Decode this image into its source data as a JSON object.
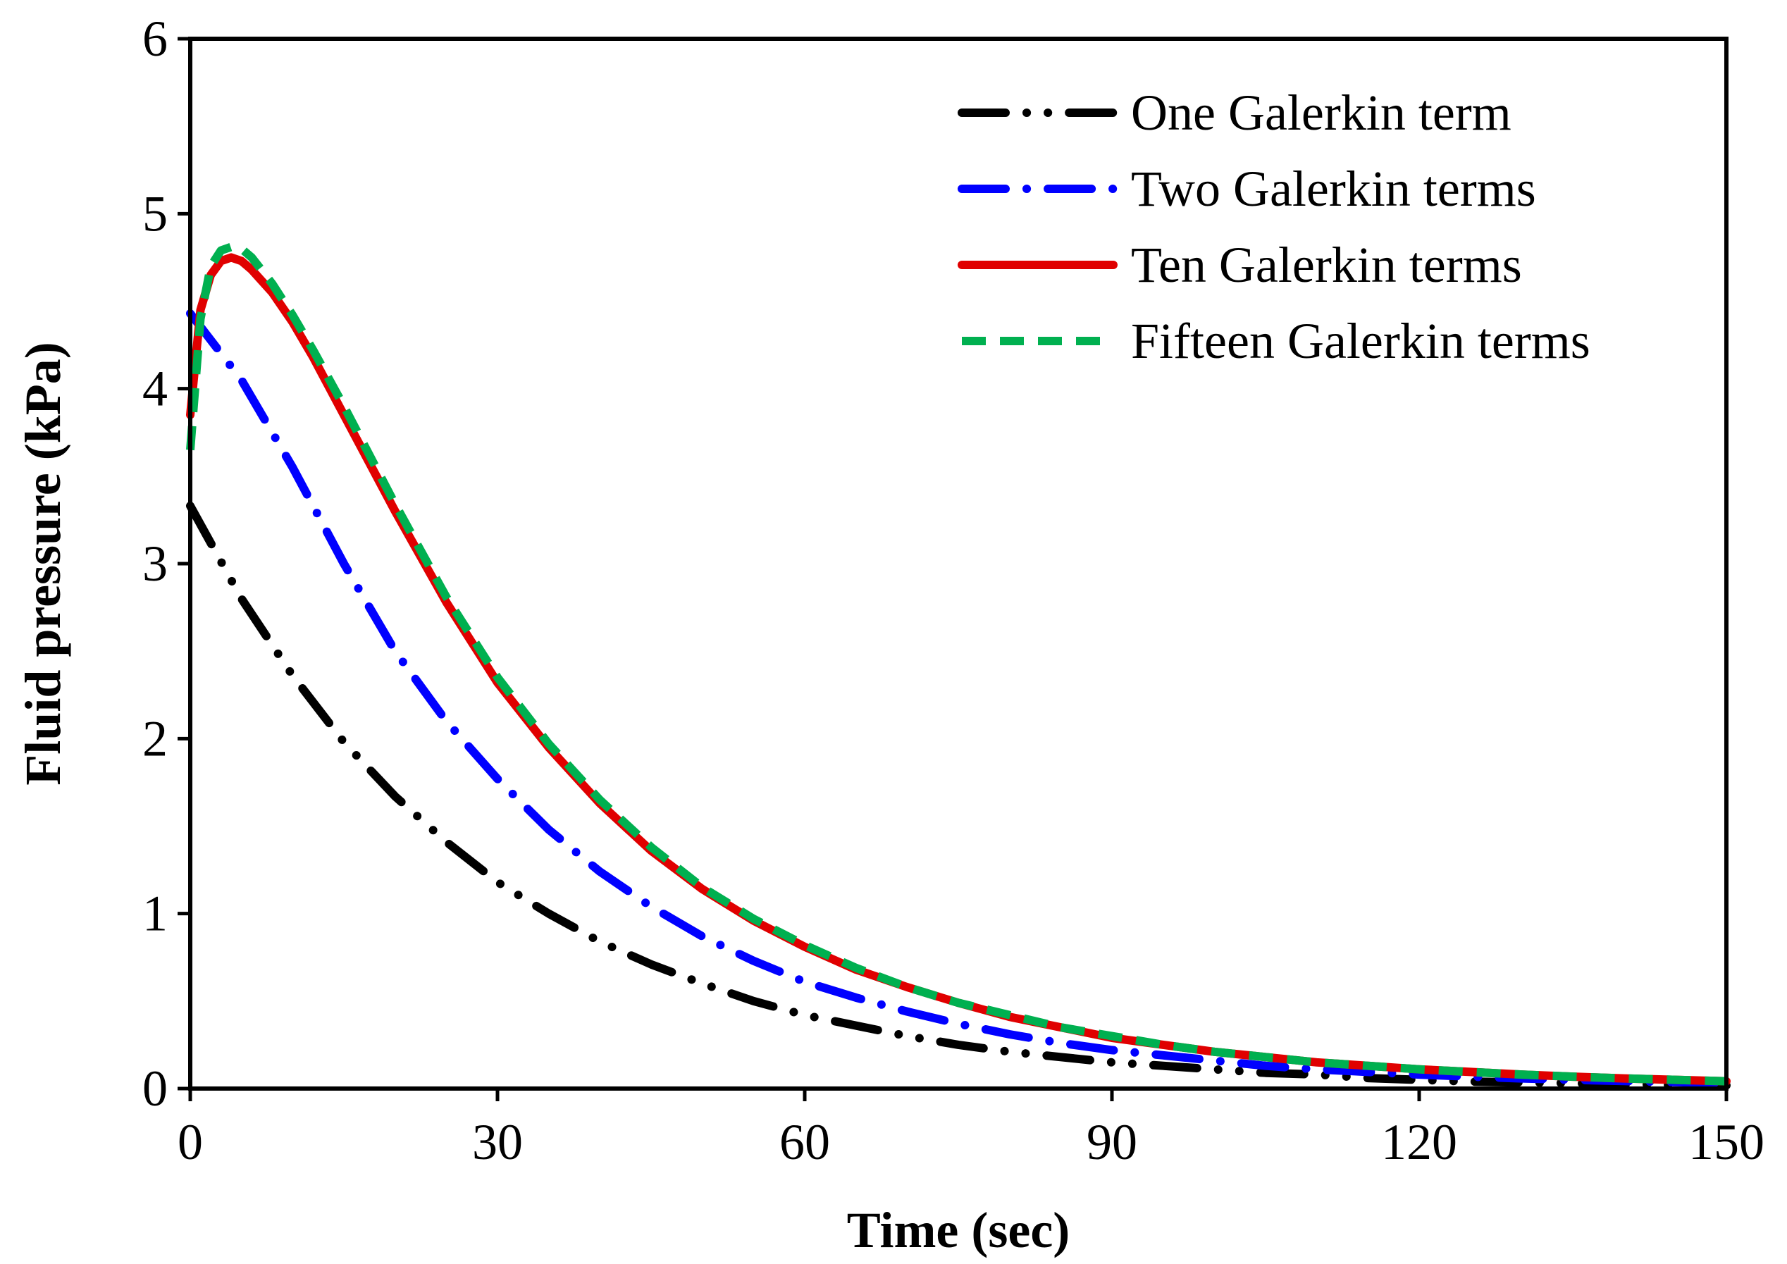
{
  "chart_data": {
    "type": "line",
    "title": "",
    "xlabel": "Time (sec)",
    "ylabel": "Fluid pressure (kPa)",
    "xlim": [
      0,
      150
    ],
    "ylim": [
      0,
      6
    ],
    "xticks": [
      0,
      30,
      60,
      90,
      120,
      150
    ],
    "yticks": [
      0,
      1,
      2,
      3,
      4,
      5,
      6
    ],
    "xtick_labels": [
      "0",
      "30",
      "60",
      "90",
      "120",
      "150"
    ],
    "ytick_labels": [
      "0",
      "1",
      "2",
      "3",
      "4",
      "5",
      "6"
    ],
    "grid": false,
    "legend_position": "top-right",
    "series": [
      {
        "name": "One Galerkin term",
        "color": "#000000",
        "style": "dash-dot-dot",
        "x": [
          0,
          5,
          10,
          15,
          20,
          25,
          30,
          35,
          40,
          45,
          50,
          55,
          60,
          65,
          70,
          75,
          80,
          85,
          90,
          95,
          100,
          105,
          110,
          115,
          120,
          125,
          130,
          135,
          140,
          145,
          150
        ],
        "y": [
          3.33,
          2.8,
          2.36,
          1.98,
          1.67,
          1.41,
          1.18,
          1.0,
          0.84,
          0.71,
          0.6,
          0.5,
          0.42,
          0.36,
          0.3,
          0.25,
          0.21,
          0.18,
          0.15,
          0.13,
          0.11,
          0.09,
          0.08,
          0.06,
          0.05,
          0.04,
          0.035,
          0.03,
          0.025,
          0.02,
          0.018
        ]
      },
      {
        "name": "Two Galerkin terms",
        "color": "#0000ff",
        "style": "dash-dot",
        "x": [
          0,
          5,
          10,
          15,
          20,
          25,
          30,
          35,
          40,
          45,
          50,
          55,
          60,
          65,
          70,
          75,
          80,
          85,
          90,
          95,
          100,
          105,
          110,
          115,
          120,
          125,
          130,
          135,
          140,
          145,
          150
        ],
        "y": [
          4.43,
          4.05,
          3.55,
          3.0,
          2.5,
          2.1,
          1.77,
          1.48,
          1.24,
          1.04,
          0.87,
          0.73,
          0.61,
          0.52,
          0.44,
          0.37,
          0.31,
          0.26,
          0.22,
          0.19,
          0.16,
          0.13,
          0.11,
          0.095,
          0.08,
          0.068,
          0.058,
          0.05,
          0.043,
          0.037,
          0.032
        ]
      },
      {
        "name": "Ten Galerkin terms",
        "color": "#e00000",
        "style": "solid",
        "x": [
          0,
          1,
          2,
          3,
          4,
          5,
          6,
          8,
          10,
          12,
          15,
          20,
          25,
          30,
          35,
          40,
          45,
          50,
          55,
          60,
          65,
          70,
          75,
          80,
          85,
          90,
          95,
          100,
          105,
          110,
          115,
          120,
          125,
          130,
          135,
          140,
          145,
          150
        ],
        "y": [
          3.85,
          4.45,
          4.65,
          4.73,
          4.75,
          4.73,
          4.68,
          4.55,
          4.38,
          4.18,
          3.85,
          3.3,
          2.78,
          2.32,
          1.95,
          1.63,
          1.36,
          1.14,
          0.96,
          0.81,
          0.68,
          0.58,
          0.49,
          0.41,
          0.35,
          0.29,
          0.25,
          0.21,
          0.18,
          0.15,
          0.13,
          0.11,
          0.095,
          0.08,
          0.068,
          0.058,
          0.05,
          0.042
        ]
      },
      {
        "name": "Fifteen Galerkin terms",
        "color": "#00b050",
        "style": "dashed",
        "x": [
          0,
          1,
          2,
          3,
          4,
          5,
          6,
          8,
          10,
          12,
          15,
          20,
          25,
          30,
          35,
          40,
          45,
          50,
          55,
          60,
          65,
          70,
          75,
          80,
          85,
          90,
          95,
          100,
          105,
          110,
          115,
          120,
          125,
          130,
          135,
          140,
          145,
          150
        ],
        "y": [
          3.65,
          4.4,
          4.7,
          4.79,
          4.81,
          4.8,
          4.75,
          4.6,
          4.42,
          4.22,
          3.9,
          3.34,
          2.81,
          2.35,
          1.97,
          1.65,
          1.38,
          1.15,
          0.97,
          0.82,
          0.69,
          0.58,
          0.49,
          0.42,
          0.35,
          0.3,
          0.25,
          0.21,
          0.18,
          0.15,
          0.13,
          0.11,
          0.095,
          0.08,
          0.068,
          0.058,
          0.05,
          0.042
        ]
      }
    ]
  }
}
